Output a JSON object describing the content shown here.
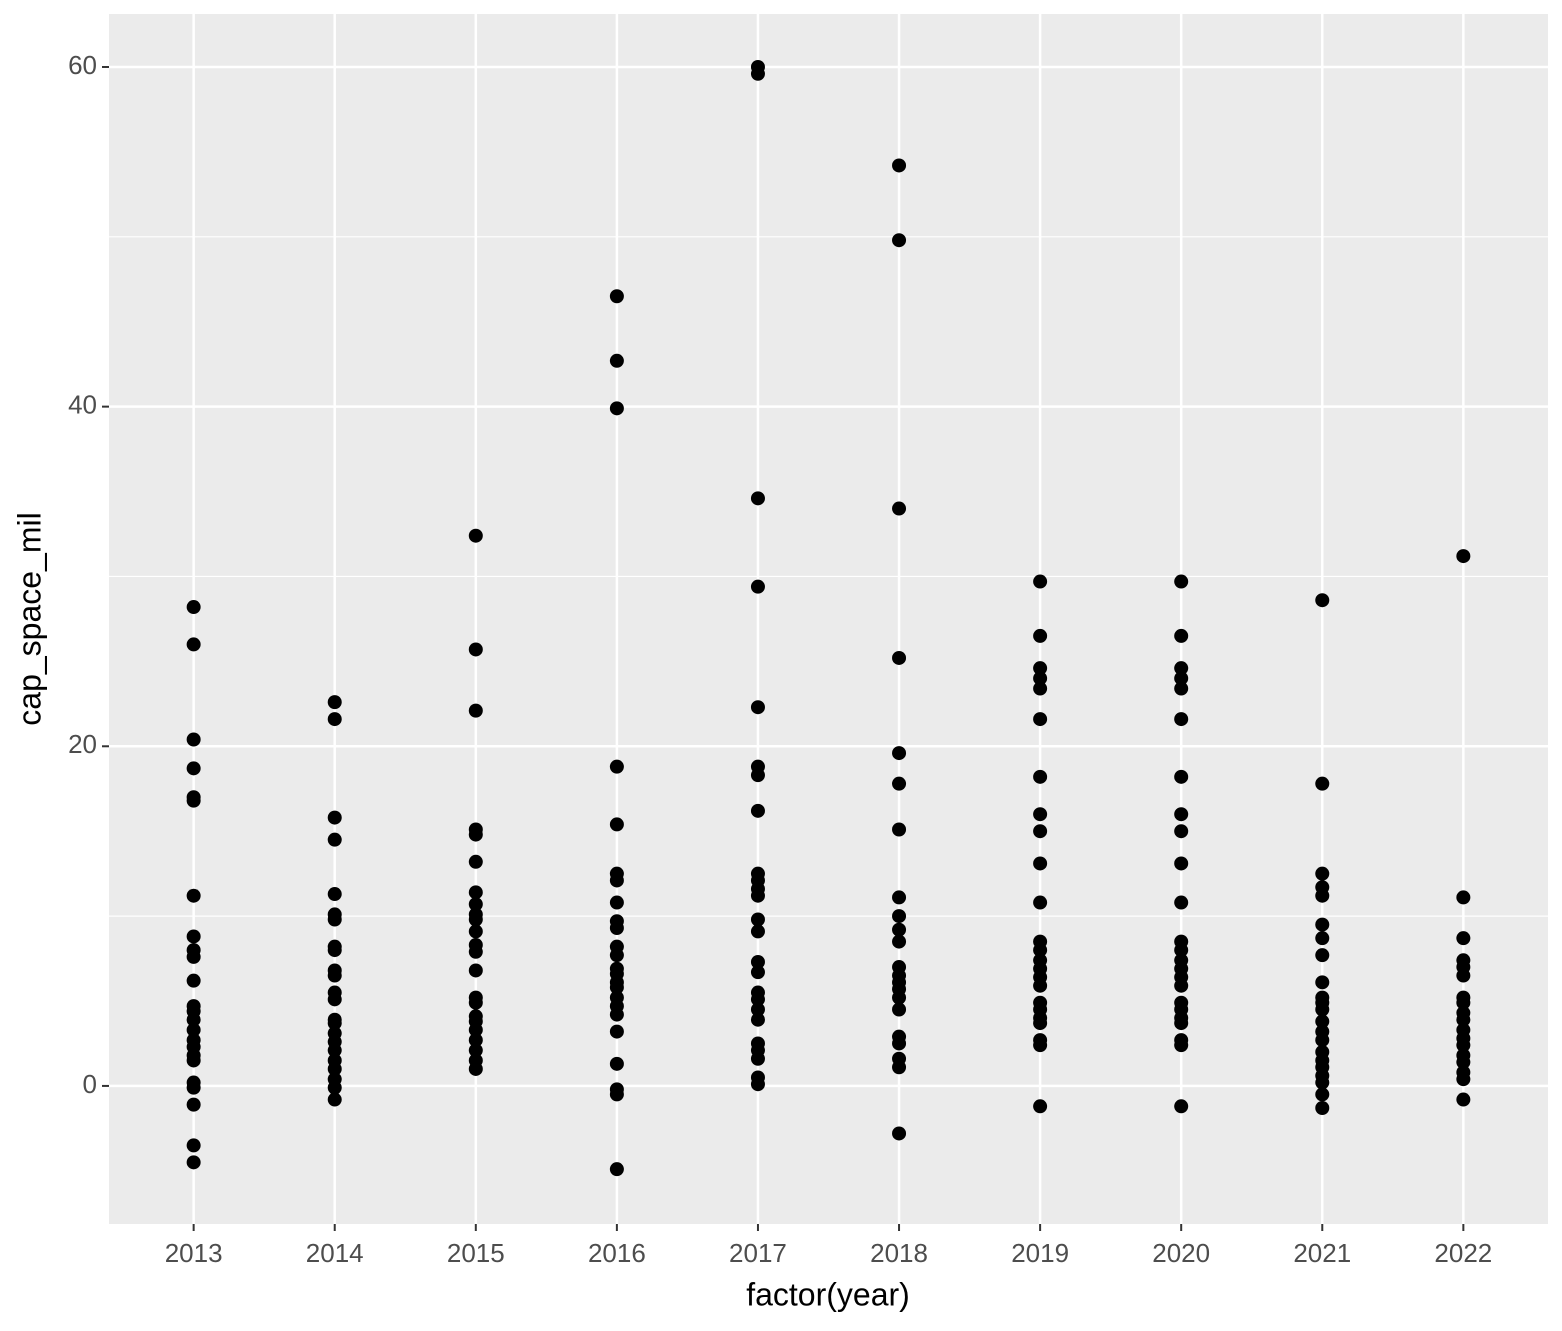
{
  "chart_data": {
    "type": "strip",
    "x_label": "factor(year)",
    "y_label": "cap_space_mil",
    "categories": [
      "2013",
      "2014",
      "2015",
      "2016",
      "2017",
      "2018",
      "2019",
      "2020",
      "2021",
      "2022"
    ],
    "values": [
      [
        28.2,
        26.0,
        20.4,
        18.7,
        17.0,
        16.8,
        11.2,
        8.8,
        8.0,
        7.6,
        6.2,
        4.7,
        4.4,
        3.9,
        3.3,
        2.7,
        2.3,
        1.8,
        1.5,
        0.2,
        -0.1,
        -1.1,
        -3.5,
        -4.5
      ],
      [
        22.6,
        21.6,
        15.8,
        14.5,
        11.3,
        10.1,
        9.8,
        8.2,
        8.0,
        6.8,
        6.5,
        5.5,
        5.1,
        3.9,
        3.7,
        3.1,
        2.6,
        2.1,
        1.5,
        1.0,
        0.4,
        -0.1,
        -0.8
      ],
      [
        32.4,
        25.7,
        22.1,
        15.1,
        14.8,
        13.2,
        11.4,
        10.7,
        10.1,
        9.8,
        9.1,
        8.3,
        7.9,
        6.8,
        5.2,
        4.9,
        4.1,
        3.8,
        3.3,
        2.7,
        2.1,
        1.5,
        1.0
      ],
      [
        46.5,
        42.7,
        39.9,
        18.8,
        15.4,
        12.5,
        12.1,
        10.8,
        9.7,
        9.3,
        8.2,
        7.7,
        6.9,
        6.6,
        6.1,
        5.8,
        5.2,
        4.7,
        4.2,
        3.2,
        1.3,
        -0.2,
        -0.5,
        -4.9
      ],
      [
        60.0,
        59.6,
        34.6,
        29.4,
        22.3,
        18.8,
        18.3,
        16.2,
        12.5,
        12.1,
        11.6,
        11.2,
        9.8,
        9.1,
        7.3,
        6.7,
        5.5,
        5.1,
        4.5,
        3.9,
        2.5,
        2.1,
        1.6,
        0.5,
        0.1
      ],
      [
        54.2,
        49.8,
        34.0,
        25.2,
        19.6,
        17.8,
        15.1,
        11.1,
        10.0,
        9.2,
        8.5,
        7.0,
        6.5,
        6.1,
        5.7,
        5.2,
        4.5,
        2.9,
        2.5,
        1.6,
        1.1,
        -2.8
      ],
      [
        29.7,
        26.5,
        24.6,
        24.0,
        23.4,
        21.6,
        18.2,
        16.0,
        15.0,
        13.1,
        10.8,
        8.5,
        8.0,
        7.4,
        6.9,
        6.4,
        5.9,
        4.9,
        4.5,
        4.0,
        3.7,
        2.7,
        2.4,
        -1.2
      ],
      [
        29.7,
        26.5,
        24.6,
        24.0,
        23.4,
        21.6,
        18.2,
        16.0,
        15.0,
        13.1,
        10.8,
        8.5,
        8.0,
        7.4,
        6.9,
        6.4,
        5.9,
        4.9,
        4.5,
        4.0,
        3.7,
        2.7,
        2.4,
        -1.2
      ],
      [
        28.6,
        17.8,
        12.5,
        11.7,
        11.2,
        9.5,
        8.7,
        7.7,
        6.1,
        5.2,
        4.9,
        4.5,
        3.8,
        3.2,
        2.7,
        2.0,
        1.5,
        1.1,
        0.6,
        0.2,
        -0.5,
        -1.3
      ],
      [
        31.2,
        11.1,
        8.7,
        7.4,
        7.0,
        6.5,
        5.2,
        4.9,
        4.3,
        3.9,
        3.3,
        2.8,
        2.4,
        1.8,
        1.4,
        0.8,
        0.4,
        -0.8
      ]
    ],
    "color": "#000000",
    "ylim": [
      -8.13,
      63.12
    ],
    "yticks": [
      0,
      20,
      40,
      60
    ],
    "minor_yticks": [
      10,
      30,
      50
    ],
    "grid": true
  }
}
